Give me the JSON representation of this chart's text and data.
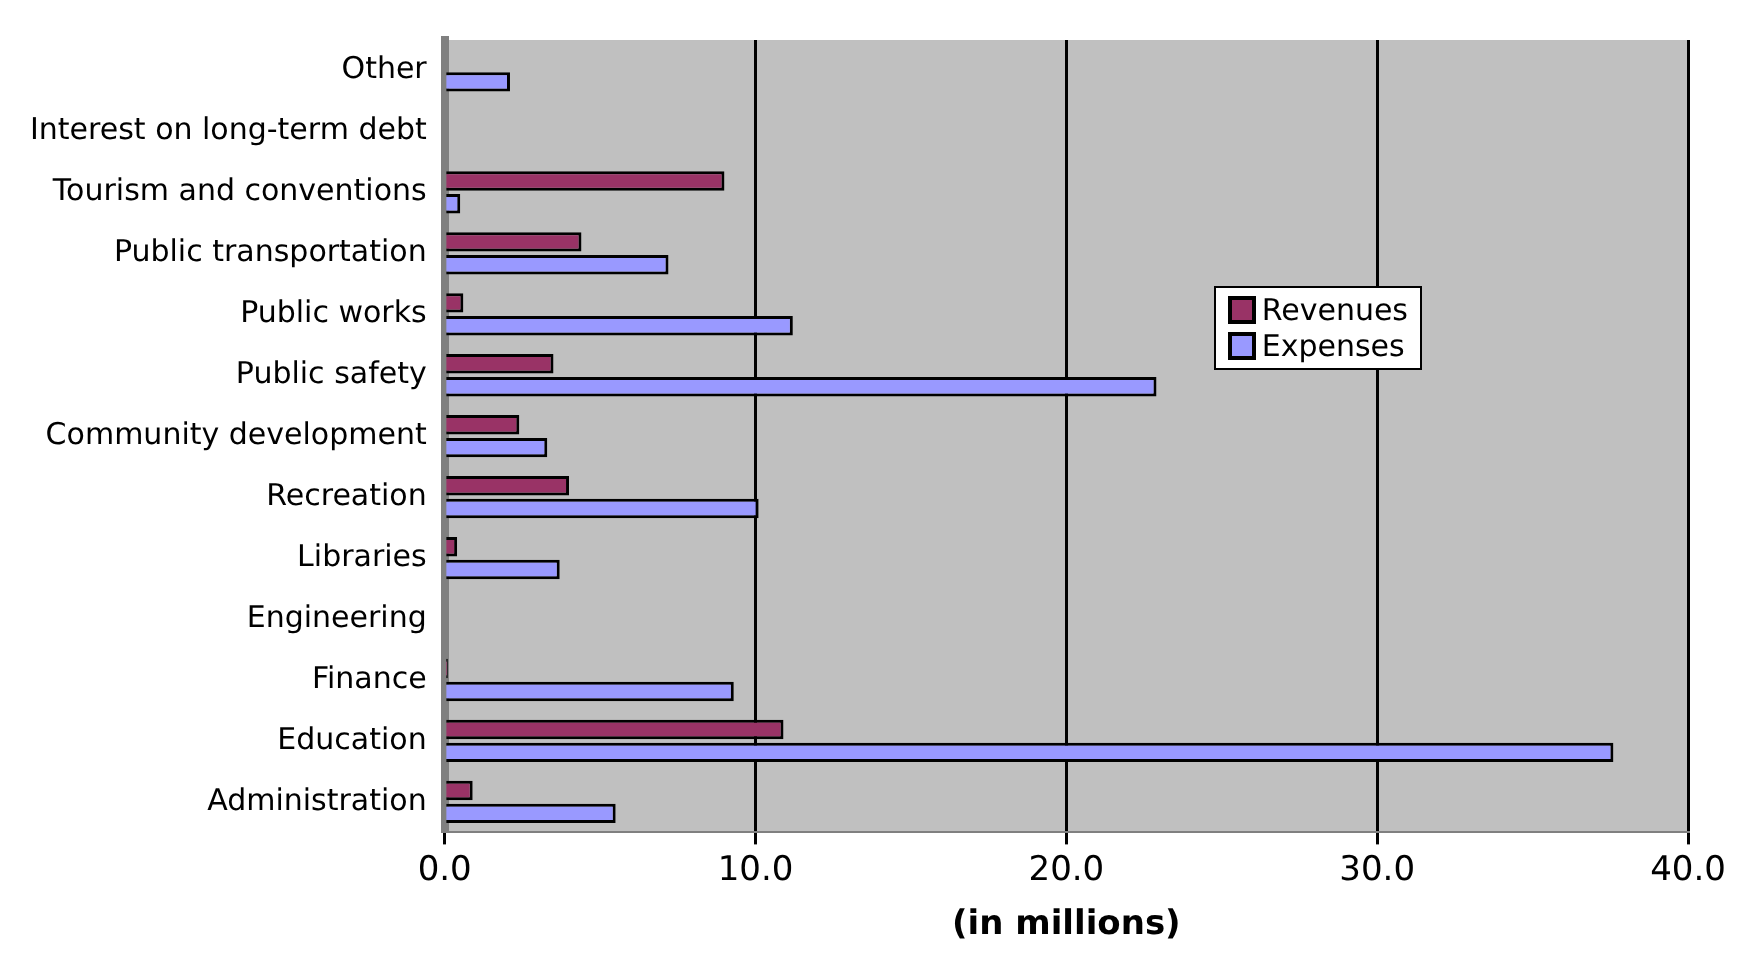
{
  "chart_data": {
    "type": "bar",
    "orientation": "horizontal",
    "xlabel": "(in millions)",
    "categories": [
      "Other",
      "Interest on long-term debt",
      "Tourism and conventions",
      "Public transportation",
      "Public works",
      "Public safety",
      "Community development",
      "Recreation",
      "Libraries",
      "Engineering",
      "Finance",
      "Education",
      "Administration"
    ],
    "series": [
      {
        "name": "Revenues",
        "color": "#993366",
        "values": [
          0,
          0,
          9.0,
          4.4,
          0.6,
          3.5,
          2.4,
          4.0,
          0.4,
          0,
          0.1,
          10.9,
          0.9
        ]
      },
      {
        "name": "Expenses",
        "color": "#9999ff",
        "values": [
          2.1,
          0,
          0.5,
          7.2,
          11.2,
          22.9,
          3.3,
          10.1,
          3.7,
          0,
          9.3,
          37.6,
          5.5
        ]
      }
    ],
    "xlim": [
      0,
      40
    ],
    "xticks": [
      {
        "value": 0,
        "label": "0.0"
      },
      {
        "value": 10,
        "label": "10.0"
      },
      {
        "value": 20,
        "label": "20.0"
      },
      {
        "value": 30,
        "label": "30.0"
      },
      {
        "value": 40,
        "label": "40.0"
      }
    ],
    "grid": "x",
    "legend": "right"
  }
}
